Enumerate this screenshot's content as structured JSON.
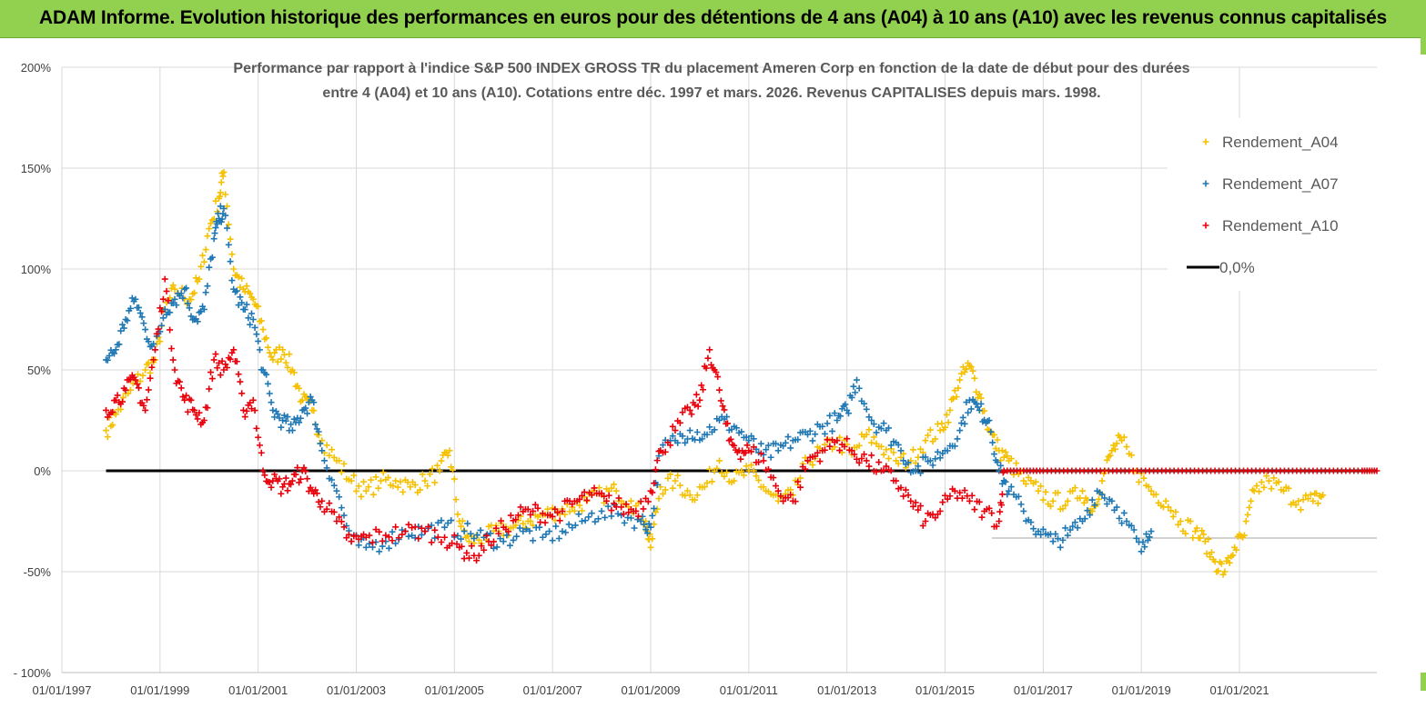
{
  "banner": {
    "title": "ADAM Informe. Evolution historique des performances en euros pour des détentions de 4 ans (A04) à 10 ans (A10) avec les revenus connus capitalisés"
  },
  "colors": {
    "banner_bg": "#92d050",
    "A04": "#f5c000",
    "A07": "#1f77b4",
    "A10": "#e8000b",
    "zero": "#000000",
    "grid": "#d9d9d9",
    "axis_text": "#404040",
    "title_text": "#595959"
  },
  "chart_data": {
    "type": "scatter",
    "title_lines": [
      "Performance par rapport à l'indice S&P 500 INDEX GROSS TR  du placement Ameren Corp en fonction de la date de début pour des durées",
      "entre 4 (A04) et 10 ans (A10). Cotations entre déc. 1997 et mars. 2026. Revenus  CAPITALISES depuis mars. 1998."
    ],
    "xlabel": "",
    "ylabel": "",
    "x_range": [
      1997.0,
      2023.8
    ],
    "ylim": [
      -100,
      200
    ],
    "y_ticks": [
      200,
      150,
      100,
      50,
      0,
      -50,
      -100
    ],
    "y_tick_labels": [
      "200%",
      "150%",
      "100%",
      "50%",
      "0%",
      "-50%",
      "- 100%"
    ],
    "x_ticks": [
      1997,
      1999,
      2001,
      2003,
      2005,
      2007,
      2009,
      2011,
      2013,
      2015,
      2017,
      2019,
      2021
    ],
    "x_tick_labels": [
      "01/01/1997",
      "01/01/1999",
      "01/01/2001",
      "01/01/2003",
      "01/01/2005",
      "01/01/2007",
      "01/01/2009",
      "01/01/2011",
      "01/01/2013",
      "01/01/2015",
      "01/01/2017",
      "01/01/2019",
      "01/01/2021"
    ],
    "grid": true,
    "legend_position": "top-right",
    "legend": [
      "Rendement_A04",
      "Rendement_A07",
      "Rendement_A10",
      "0,0%"
    ],
    "series": [
      {
        "name": "Rendement_A04",
        "marker": "+",
        "x": [
          1997.9,
          1998.1,
          1998.4,
          1998.7,
          1998.9,
          1999.1,
          1999.3,
          1999.6,
          1999.8,
          2000.0,
          2000.2,
          2000.3,
          2000.5,
          2000.7,
          2000.9,
          2001.1,
          2001.3,
          2001.5,
          2001.7,
          2001.9,
          2002.1,
          2002.3,
          2002.6,
          2002.9,
          2003.2,
          2003.5,
          2003.8,
          2004.1,
          2004.4,
          2004.7,
          2004.9,
          2005.1,
          2005.3,
          2005.6,
          2005.9,
          2006.2,
          2006.5,
          2006.8,
          2007.1,
          2007.4,
          2007.7,
          2008.0,
          2008.3,
          2008.6,
          2008.9,
          2009.0,
          2009.2,
          2009.5,
          2009.8,
          2010.1,
          2010.4,
          2010.7,
          2011.0,
          2011.3,
          2011.6,
          2011.9,
          2012.2,
          2012.5,
          2012.8,
          2013.1,
          2013.4,
          2013.7,
          2014.0,
          2014.3,
          2014.6,
          2014.9,
          2015.1,
          2015.3,
          2015.5,
          2015.7,
          2015.9,
          2016.1,
          2016.3,
          2016.6,
          2016.9,
          2017.2,
          2017.5,
          2017.8,
          2018.0,
          2018.2,
          2018.4,
          2018.6,
          2018.9,
          2019.2,
          2019.5,
          2019.8,
          2020.1,
          2020.3,
          2020.5,
          2020.7,
          2020.9,
          2021.1,
          2021.3,
          2021.6,
          2021.9,
          2022.2,
          2022.5,
          2022.7
        ],
        "y": [
          20,
          28,
          40,
          50,
          55,
          80,
          90,
          85,
          95,
          120,
          135,
          148,
          100,
          90,
          85,
          70,
          55,
          60,
          50,
          35,
          30,
          15,
          5,
          -5,
          -10,
          -5,
          -5,
          -8,
          -5,
          0,
          10,
          -25,
          -35,
          -33,
          -30,
          -28,
          -25,
          -22,
          -20,
          -18,
          -15,
          -12,
          -10,
          -15,
          -25,
          -38,
          -8,
          -5,
          -12,
          -8,
          5,
          -5,
          0,
          -8,
          -15,
          -12,
          5,
          10,
          15,
          8,
          18,
          12,
          5,
          5,
          15,
          20,
          30,
          45,
          52,
          38,
          20,
          10,
          5,
          -5,
          -10,
          -15,
          -15,
          -10,
          -20,
          -5,
          10,
          15,
          0,
          -10,
          -15,
          -25,
          -30,
          -35,
          -45,
          -50,
          -38,
          -32,
          -10,
          -5,
          -10,
          -15,
          -15,
          -12
        ]
      },
      {
        "name": "Rendement_A07",
        "marker": "+",
        "x": [
          1997.9,
          1998.1,
          1998.3,
          1998.5,
          1998.7,
          1998.9,
          1999.1,
          1999.3,
          1999.5,
          1999.7,
          1999.9,
          2000.1,
          2000.2,
          2000.3,
          2000.5,
          2000.7,
          2000.9,
          2001.1,
          2001.3,
          2001.5,
          2001.7,
          2001.9,
          2002.1,
          2002.3,
          2002.6,
          2002.9,
          2003.2,
          2003.6,
          2004.0,
          2004.4,
          2004.8,
          2005.2,
          2005.6,
          2006.0,
          2006.4,
          2006.8,
          2007.2,
          2007.6,
          2008.0,
          2008.4,
          2008.8,
          2009.0,
          2009.2,
          2009.5,
          2009.8,
          2010.1,
          2010.4,
          2010.7,
          2011.0,
          2011.3,
          2011.6,
          2011.9,
          2012.2,
          2012.5,
          2012.8,
          2013.0,
          2013.2,
          2013.5,
          2013.8,
          2014.1,
          2014.4,
          2014.7,
          2015.0,
          2015.3,
          2015.5,
          2015.7,
          2015.9,
          2016.1,
          2016.3,
          2016.6,
          2016.9,
          2017.2,
          2017.5,
          2017.8,
          2018.1,
          2018.4,
          2018.7,
          2019.0,
          2019.2
        ],
        "y": [
          55,
          60,
          75,
          85,
          70,
          60,
          80,
          85,
          90,
          75,
          80,
          115,
          125,
          130,
          90,
          80,
          75,
          50,
          30,
          25,
          20,
          30,
          35,
          10,
          -10,
          -35,
          -38,
          -35,
          -30,
          -30,
          -28,
          -30,
          -33,
          -35,
          -30,
          -33,
          -30,
          -25,
          -20,
          -22,
          -25,
          -28,
          10,
          15,
          20,
          18,
          25,
          22,
          15,
          8,
          10,
          15,
          18,
          22,
          25,
          30,
          45,
          25,
          20,
          10,
          0,
          5,
          10,
          20,
          35,
          30,
          25,
          0,
          -10,
          -20,
          -30,
          -35,
          -32,
          -25,
          -10,
          -15,
          -25,
          -40,
          -30
        ]
      },
      {
        "name": "Rendement_A10",
        "marker": "+",
        "x": [
          1997.9,
          1998.1,
          1998.3,
          1998.5,
          1998.7,
          1998.9,
          1999.1,
          1999.3,
          1999.5,
          1999.7,
          1999.9,
          2000.1,
          2000.3,
          2000.5,
          2000.7,
          2000.9,
          2001.1,
          2001.3,
          2001.5,
          2001.7,
          2001.9,
          2002.1,
          2002.3,
          2002.6,
          2002.9,
          2003.2,
          2003.6,
          2004.0,
          2004.4,
          2004.8,
          2005.1,
          2005.4,
          2005.7,
          2006.0,
          2006.3,
          2006.6,
          2006.9,
          2007.2,
          2007.5,
          2007.8,
          2008.1,
          2008.4,
          2008.7,
          2009.0,
          2009.2,
          2009.5,
          2009.8,
          2010.0,
          2010.2,
          2010.4,
          2010.6,
          2010.8,
          2011.0,
          2011.3,
          2011.6,
          2011.9,
          2012.2,
          2012.5,
          2012.8,
          2013.1,
          2013.4,
          2013.7,
          2014.0,
          2014.3,
          2014.6,
          2014.9,
          2015.2,
          2015.5,
          2015.8,
          2016.1,
          2016.2,
          2016.6,
          2017.0,
          2017.5,
          2018.0,
          2018.5,
          2019.0,
          2019.5,
          2020.0,
          2020.5,
          2021.0,
          2021.5,
          2022.0,
          2022.5,
          2023.0,
          2023.5,
          2023.8
        ],
        "y": [
          30,
          35,
          40,
          45,
          30,
          60,
          95,
          50,
          35,
          30,
          25,
          55,
          50,
          60,
          30,
          35,
          0,
          -5,
          -8,
          -5,
          0,
          -10,
          -15,
          -25,
          -35,
          -33,
          -32,
          -30,
          -30,
          -33,
          -38,
          -42,
          -35,
          -28,
          -22,
          -20,
          -22,
          -20,
          -15,
          -12,
          -15,
          -18,
          -20,
          -10,
          10,
          20,
          30,
          35,
          60,
          40,
          15,
          10,
          10,
          5,
          -10,
          -15,
          5,
          10,
          15,
          10,
          5,
          0,
          -5,
          -15,
          -25,
          -20,
          -10,
          -15,
          -20,
          -25,
          0,
          0,
          0,
          0,
          0,
          0,
          0,
          0,
          0,
          0,
          0,
          0,
          0,
          0,
          0,
          0,
          0
        ]
      }
    ],
    "reference_line": {
      "name": "0,0%",
      "y": 0,
      "x_start": 1997.9,
      "x_end": 2023.8
    }
  }
}
